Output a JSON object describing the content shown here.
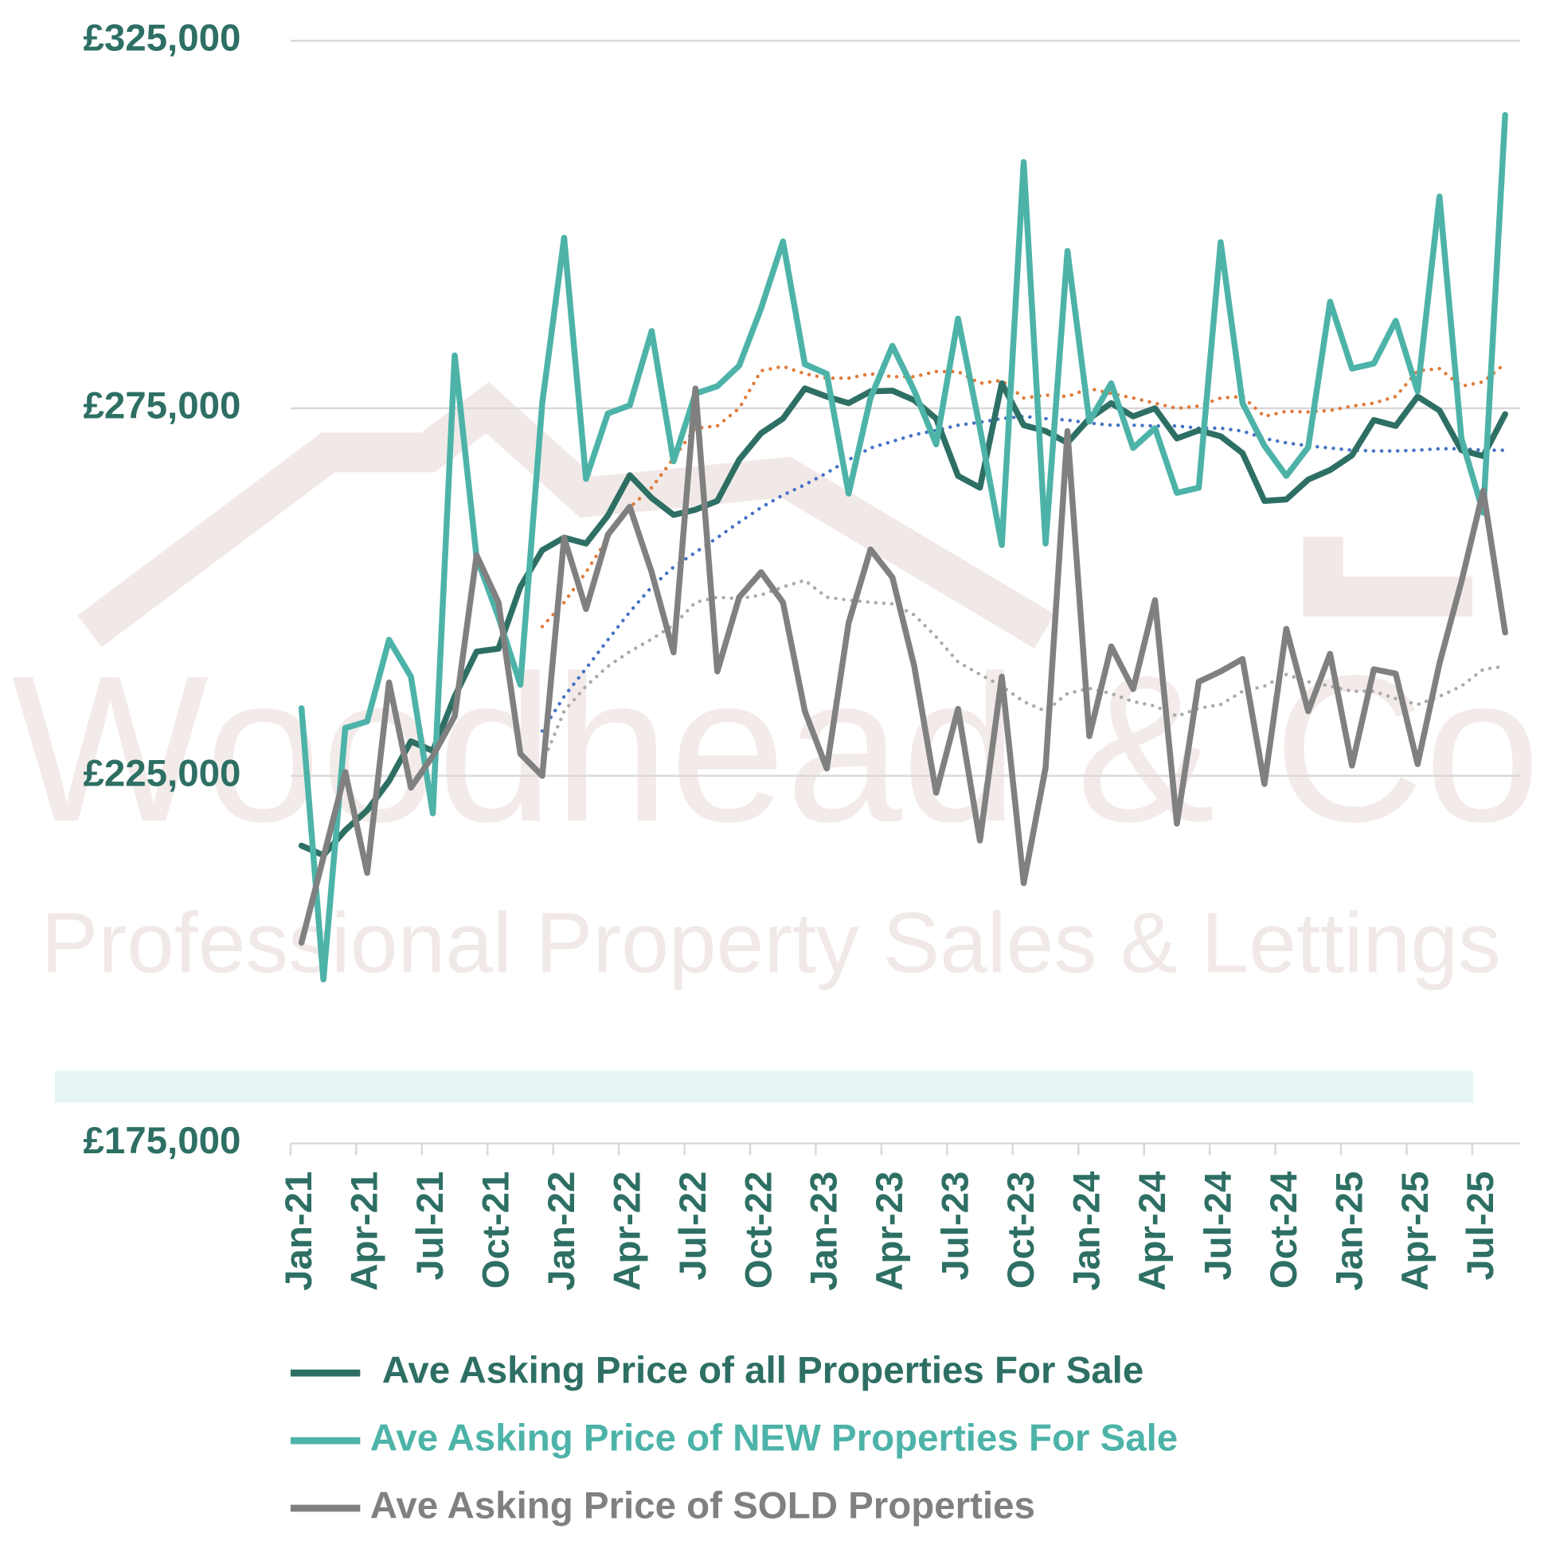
{
  "chart_data": {
    "type": "line",
    "watermark": {
      "name": "Woodhead & Co",
      "tagline": "Professional Property Sales & Lettings"
    },
    "categories": [
      "Jan-21",
      null,
      null,
      "Apr-21",
      null,
      null,
      "Jul-21",
      null,
      null,
      "Oct-21",
      null,
      null,
      "Jan-22",
      null,
      null,
      "Apr-22",
      null,
      null,
      "Jul-22",
      null,
      null,
      "Oct-22",
      null,
      null,
      "Jan-23",
      null,
      null,
      "Apr-23",
      null,
      null,
      "Jul-23",
      null,
      null,
      "Oct-23",
      null,
      null,
      "Jan-24",
      null,
      null,
      "Apr-24",
      null,
      null,
      "Jul-24",
      null,
      null,
      "Oct-24",
      null,
      null,
      "Jan-25",
      null,
      null,
      "Apr-25",
      null,
      null,
      "Jul-25",
      null
    ],
    "ylim": [
      175000,
      325000
    ],
    "yticks": [
      {
        "value": 175000,
        "label": "£175,000"
      },
      {
        "value": 225000,
        "label": "£225,000"
      },
      {
        "value": 275000,
        "label": "£275,000"
      },
      {
        "value": 325000,
        "label": "£325,000"
      }
    ],
    "grid": true,
    "legend": "bottom",
    "series": [
      {
        "name": "Ave Asking Price of all Properties For Sale",
        "color": "#2e6f64",
        "values": [
          215500,
          214200,
          217600,
          220300,
          224300,
          229700,
          228400,
          235800,
          241900,
          242300,
          250700,
          255700,
          257400,
          256600,
          260400,
          265900,
          262800,
          260500,
          261200,
          262400,
          268000,
          271600,
          273600,
          277700,
          276600,
          275700,
          277300,
          277400,
          276100,
          273600,
          265800,
          264200,
          278400,
          272700,
          271900,
          270300,
          273600,
          275700,
          273900,
          275000,
          270900,
          272000,
          271200,
          268900,
          262400,
          262600,
          265300,
          266600,
          268600,
          273400,
          272600,
          276600,
          274700,
          269300,
          268500,
          274200
        ]
      },
      {
        "name": "Ave Asking Price of NEW Properties For Sale",
        "color": "#4db3a8",
        "values": [
          234200,
          197300,
          231500,
          232400,
          243500,
          238500,
          219900,
          282200,
          254700,
          246600,
          237400,
          275700,
          298200,
          265400,
          274300,
          275400,
          285500,
          267800,
          277000,
          278000,
          280800,
          288600,
          297700,
          281000,
          279700,
          263400,
          276400,
          283500,
          277400,
          270100,
          287200,
          272300,
          256400,
          308500,
          256600,
          296400,
          273200,
          278400,
          269600,
          272300,
          263500,
          264200,
          297600,
          275700,
          269900,
          265800,
          269700,
          289500,
          280400,
          281100,
          286900,
          277300,
          303800,
          270900,
          260800,
          314900
        ]
      },
      {
        "name": "Ave Asking Price of SOLD Properties",
        "color": "#808080",
        "values": [
          202300,
          213900,
          225500,
          211800,
          237700,
          223400,
          227700,
          233100,
          255000,
          248600,
          228000,
          225000,
          257400,
          247700,
          257800,
          261600,
          252700,
          241800,
          277700,
          239200,
          249300,
          252700,
          248600,
          233800,
          226000,
          245800,
          255800,
          252000,
          239900,
          222700,
          234100,
          216200,
          238500,
          210400,
          226100,
          271900,
          230400,
          242600,
          236800,
          248900,
          218500,
          237800,
          239200,
          240900,
          223900,
          245000,
          233800,
          241600,
          226400,
          239500,
          238900,
          226600,
          240300,
          251400,
          263800,
          244500
        ]
      },
      {
        "color": "#e07b39",
        "dash": true,
        "values": [
          null,
          null,
          null,
          null,
          null,
          null,
          null,
          null,
          null,
          null,
          null,
          245300,
          248600,
          252700,
          257400,
          261500,
          264200,
          268200,
          272300,
          272600,
          275000,
          280100,
          280700,
          279700,
          279100,
          279100,
          279700,
          279300,
          279300,
          280000,
          280000,
          278400,
          278800,
          276400,
          276800,
          276600,
          277700,
          277000,
          276400,
          275700,
          275000,
          275300,
          276400,
          276600,
          273900,
          274600,
          274500,
          274700,
          275300,
          275700,
          276600,
          280100,
          280400,
          278000,
          278600,
          281100
        ]
      },
      {
        "color": "#4472c4",
        "dash": true,
        "values": [
          null,
          null,
          null,
          null,
          null,
          null,
          null,
          null,
          null,
          null,
          null,
          231100,
          235800,
          239600,
          243500,
          247300,
          250700,
          253400,
          255400,
          257400,
          259500,
          261500,
          263200,
          264600,
          266200,
          268000,
          269600,
          270500,
          271400,
          272000,
          272700,
          273100,
          273600,
          273900,
          273600,
          273400,
          273000,
          272700,
          272700,
          272600,
          272600,
          272300,
          272300,
          271900,
          270900,
          270300,
          269900,
          269600,
          269300,
          269200,
          269200,
          269300,
          269500,
          269500,
          269300,
          269300
        ]
      },
      {
        "color": "#aaaaaa",
        "dash": true,
        "values": [
          null,
          null,
          null,
          null,
          null,
          null,
          null,
          null,
          null,
          null,
          null,
          226600,
          233800,
          237200,
          239900,
          241900,
          243600,
          245500,
          248600,
          249300,
          249100,
          249600,
          250700,
          251600,
          249300,
          248900,
          248600,
          248400,
          246900,
          243900,
          240500,
          238800,
          237200,
          235100,
          233800,
          236200,
          236900,
          236200,
          235100,
          234500,
          233100,
          234200,
          234700,
          236500,
          237200,
          238800,
          237800,
          237200,
          236500,
          236500,
          235500,
          234700,
          235800,
          237200,
          239500,
          239900
        ]
      }
    ]
  }
}
